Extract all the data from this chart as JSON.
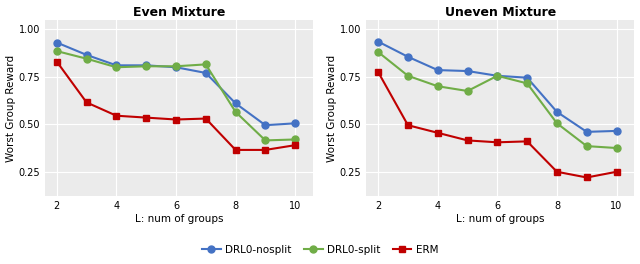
{
  "x": [
    2,
    3,
    4,
    5,
    6,
    7,
    8,
    9,
    10
  ],
  "even": {
    "nosplit": [
      0.93,
      0.865,
      0.81,
      0.81,
      0.8,
      0.77,
      0.61,
      0.495,
      0.505
    ],
    "split": [
      0.885,
      0.845,
      0.8,
      0.805,
      0.805,
      0.815,
      0.565,
      0.415,
      0.42
    ],
    "erm": [
      0.83,
      0.615,
      0.545,
      0.535,
      0.525,
      0.53,
      0.365,
      0.365,
      0.39
    ]
  },
  "uneven": {
    "nosplit": [
      0.935,
      0.855,
      0.785,
      0.78,
      0.755,
      0.745,
      0.565,
      0.46,
      0.465
    ],
    "split": [
      0.88,
      0.755,
      0.7,
      0.675,
      0.755,
      0.715,
      0.505,
      0.385,
      0.375
    ],
    "erm": [
      0.775,
      0.495,
      0.455,
      0.415,
      0.405,
      0.41,
      0.25,
      0.22,
      0.25
    ]
  },
  "colors": {
    "nosplit": "#4472C4",
    "split": "#70AD47",
    "erm": "#C00000"
  },
  "markers": {
    "nosplit": "o",
    "split": "o",
    "erm": "s"
  },
  "title_even": "Even Mixture",
  "title_uneven": "Uneven Mixture",
  "ylabel": "Worst Group Reward",
  "xlabel": "L: num of groups",
  "legend_labels": [
    "DRL0-nosplit",
    "DRL0-split",
    "ERM"
  ],
  "yticks": [
    0.25,
    0.5,
    0.75,
    1.0
  ],
  "ylim": [
    0.12,
    1.05
  ],
  "xlim": [
    1.6,
    10.6
  ],
  "xticks": [
    2,
    4,
    6,
    8,
    10
  ],
  "panel_bg": "#EBEBEB",
  "grid_color": "#FFFFFF",
  "linewidth": 1.5,
  "markersize": 5,
  "title_fontsize": 9,
  "label_fontsize": 7.5,
  "tick_fontsize": 7,
  "legend_fontsize": 7.5
}
